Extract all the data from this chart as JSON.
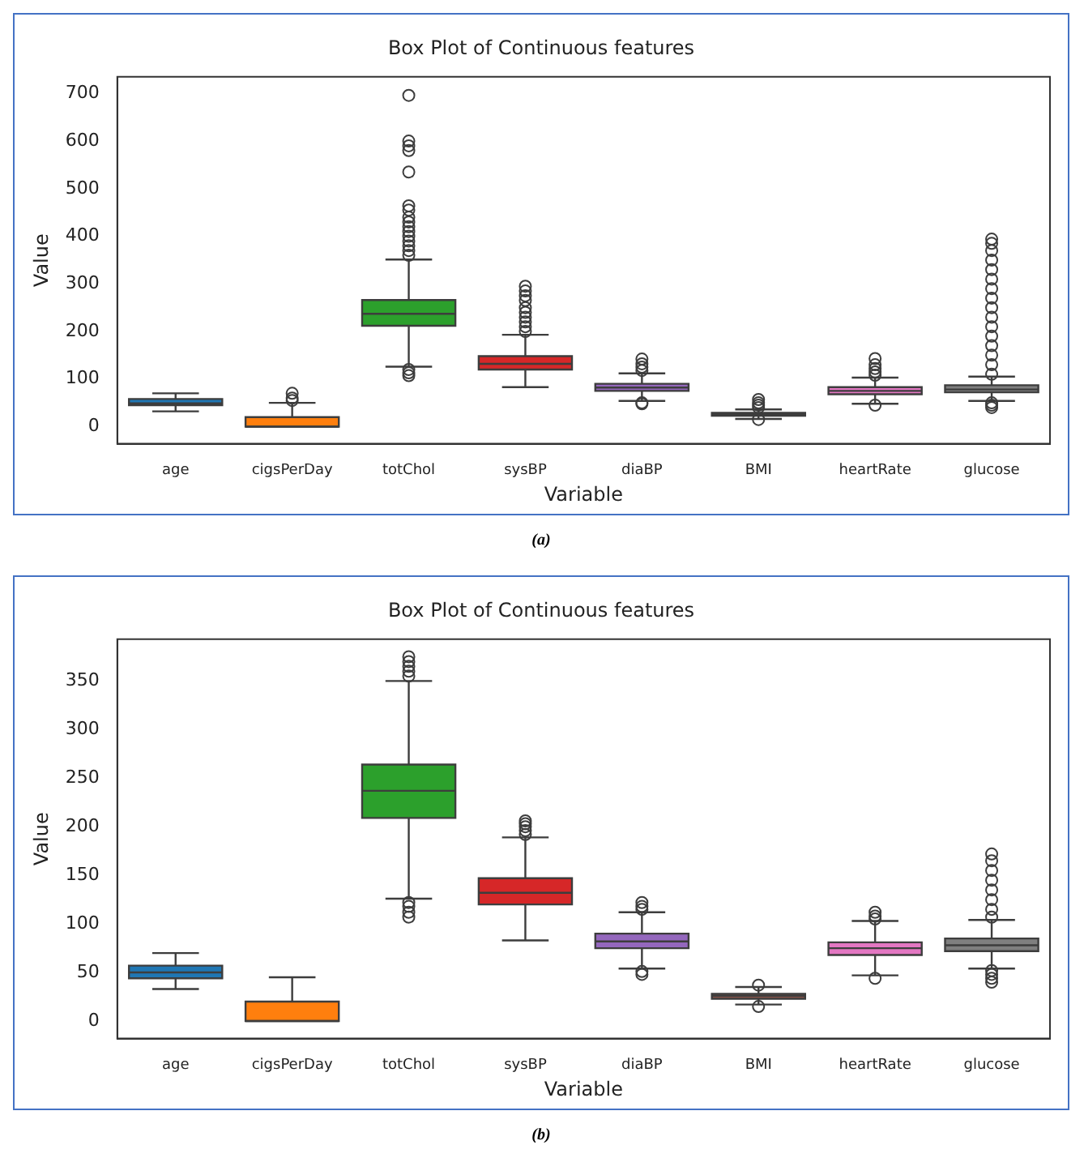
{
  "chart_data": [
    {
      "type": "box",
      "title": "Box Plot of Continuous features",
      "xlabel": "Variable",
      "ylabel": "Value",
      "categories": [
        "age",
        "cigsPerDay",
        "totChol",
        "sysBP",
        "diaBP",
        "BMI",
        "heartRate",
        "glucose"
      ],
      "colors": [
        "#1f77b4",
        "#ff7f0e",
        "#2ca02c",
        "#d62728",
        "#9467bd",
        "#8c564b",
        "#e377c2",
        "#7f7f7f"
      ],
      "ylim": [
        -36,
        735
      ],
      "yticks": [
        0,
        100,
        200,
        300,
        400,
        500,
        600,
        700
      ],
      "grid": false,
      "annotations": [
        "(a)"
      ],
      "boxes": [
        {
          "low": 32,
          "q1": 45,
          "median": 49,
          "q3": 58,
          "high": 70
        },
        {
          "low": 0,
          "q1": 0,
          "median": 0,
          "q3": 20,
          "high": 50,
          "outliers": [
            55,
            60,
            70
          ]
        },
        {
          "low": 126,
          "q1": 212,
          "median": 237,
          "q3": 266,
          "high": 351,
          "outliers": [
            107,
            113,
            120,
            360,
            370,
            380,
            390,
            400,
            410,
            420,
            430,
            440,
            455,
            464,
            535,
            580,
            590,
            600,
            696
          ]
        },
        {
          "low": 83,
          "q1": 120,
          "median": 132,
          "q3": 148,
          "high": 193,
          "outliers": [
            200,
            210,
            220,
            230,
            240,
            250,
            265,
            275,
            285,
            295
          ]
        },
        {
          "low": 54,
          "q1": 75,
          "median": 82,
          "q3": 90,
          "high": 112,
          "outliers": [
            48,
            50,
            118,
            125,
            132,
            142
          ]
        },
        {
          "low": 16,
          "q1": 23,
          "median": 26,
          "q3": 29,
          "high": 36,
          "outliers": [
            15,
            40,
            45,
            50,
            57
          ]
        },
        {
          "low": 48,
          "q1": 68,
          "median": 75,
          "q3": 83,
          "high": 103,
          "outliers": [
            45,
            108,
            115,
            122,
            130,
            143
          ]
        },
        {
          "low": 54,
          "q1": 72,
          "median": 78,
          "q3": 87,
          "high": 105,
          "outliers": [
            40,
            45,
            50,
            110,
            130,
            150,
            170,
            190,
            210,
            230,
            250,
            270,
            290,
            310,
            330,
            350,
            370,
            385,
            394
          ]
        }
      ]
    },
    {
      "type": "box",
      "title": "Box Plot of Continuous features",
      "xlabel": "Variable",
      "ylabel": "Value",
      "categories": [
        "age",
        "cigsPerDay",
        "totChol",
        "sysBP",
        "diaBP",
        "BMI",
        "heartRate",
        "glucose"
      ],
      "colors": [
        "#1f77b4",
        "#ff7f0e",
        "#2ca02c",
        "#d62728",
        "#9467bd",
        "#8c564b",
        "#e377c2",
        "#7f7f7f"
      ],
      "ylim": [
        -18,
        393
      ],
      "yticks": [
        0,
        50,
        100,
        150,
        200,
        250,
        300,
        350
      ],
      "grid": false,
      "annotations": [
        "(b)"
      ],
      "boxes": [
        {
          "low": 33,
          "q1": 44,
          "median": 50,
          "q3": 57,
          "high": 70
        },
        {
          "low": 0,
          "q1": 0,
          "median": 0,
          "q3": 20,
          "high": 45
        },
        {
          "low": 126,
          "q1": 209,
          "median": 237,
          "q3": 264,
          "high": 350,
          "outliers": [
            107,
            112,
            118,
            122,
            355,
            360,
            365,
            370,
            375
          ]
        },
        {
          "low": 83,
          "q1": 120,
          "median": 132,
          "q3": 147,
          "high": 189,
          "outliers": [
            192,
            196,
            200,
            203,
            206
          ]
        },
        {
          "low": 54,
          "q1": 75,
          "median": 82,
          "q3": 90,
          "high": 112,
          "outliers": [
            48,
            51,
            115,
            118,
            122
          ]
        },
        {
          "low": 17,
          "q1": 23,
          "median": 26,
          "q3": 28,
          "high": 35,
          "outliers": [
            15,
            37
          ]
        },
        {
          "low": 47,
          "q1": 68,
          "median": 75,
          "q3": 81,
          "high": 103,
          "outliers": [
            44,
            105,
            108,
            112
          ]
        },
        {
          "low": 54,
          "q1": 72,
          "median": 78,
          "q3": 85,
          "high": 104,
          "outliers": [
            40,
            44,
            48,
            52,
            107,
            115,
            125,
            135,
            145,
            155,
            165,
            172
          ]
        }
      ]
    }
  ]
}
